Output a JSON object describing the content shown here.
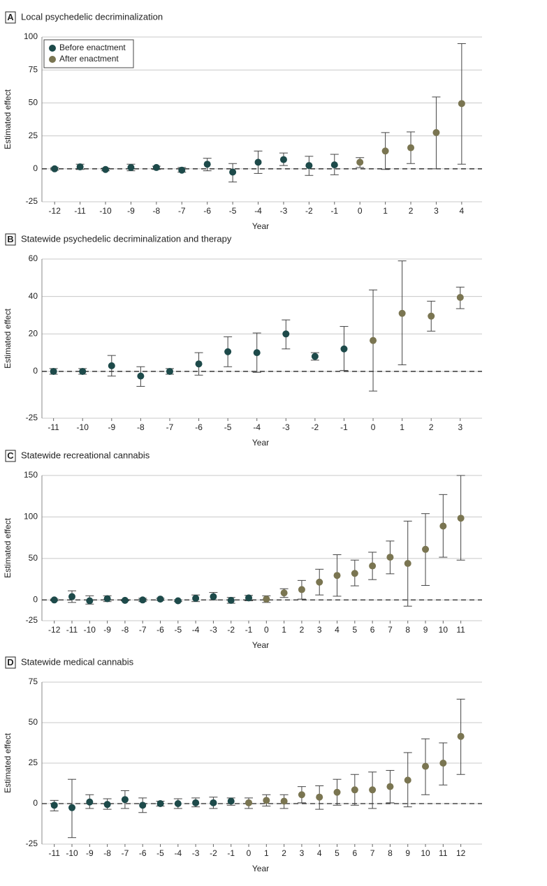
{
  "chart_data": [
    {
      "type": "errorbar",
      "panel": "A",
      "title": "Local psychedelic decriminalization",
      "xlabel": "Year",
      "ylabel": "Estimated effect",
      "xlim": [
        -12.5,
        4.8
      ],
      "xticks": [
        -12,
        -11,
        -10,
        -9,
        -8,
        -7,
        -6,
        -5,
        -4,
        -3,
        -2,
        -1,
        0,
        1,
        2,
        3,
        4
      ],
      "ylim": [
        -25,
        100
      ],
      "yticks": [
        -25,
        0,
        25,
        50,
        75,
        100
      ],
      "grid": true,
      "zero_line": true,
      "legend": "upper left",
      "series": [
        {
          "name": "Before enactment",
          "color": "#1d4a4a",
          "x": [
            -12,
            -11,
            -10,
            -9,
            -8,
            -7,
            -6,
            -5,
            -4,
            -3,
            -2,
            -1
          ],
          "values": [
            0,
            1.5,
            -0.5,
            1,
            1,
            -1,
            3.5,
            -2.5,
            5,
            7,
            2.5,
            3
          ],
          "lower": [
            -1,
            -0.5,
            -1.5,
            -1.5,
            -0.5,
            -2.5,
            -1.5,
            -10,
            -3.5,
            2.5,
            -5,
            -4.5
          ],
          "upper": [
            1,
            3.5,
            0.5,
            3.5,
            2,
            1,
            8,
            4,
            13.5,
            12,
            9.5,
            11
          ]
        },
        {
          "name": "After enactment",
          "color": "#7a7551",
          "x": [
            0,
            1,
            2,
            3,
            4
          ],
          "values": [
            5,
            13.5,
            16,
            27.5,
            49.5
          ],
          "lower": [
            1,
            -0.5,
            4,
            0,
            3.5
          ],
          "upper": [
            8.5,
            27.5,
            28,
            54.5,
            95
          ]
        }
      ]
    },
    {
      "type": "errorbar",
      "panel": "B",
      "title": "Statewide psychedelic decriminalization and therapy",
      "xlabel": "Year",
      "ylabel": "Estimated effect",
      "xlim": [
        -11.4,
        3.75
      ],
      "xticks": [
        -11,
        -10,
        -9,
        -8,
        -7,
        -6,
        -5,
        -4,
        -3,
        -2,
        -1,
        0,
        1,
        2,
        3
      ],
      "ylim": [
        -25,
        60
      ],
      "yticks": [
        -25,
        0,
        20,
        40,
        60
      ],
      "grid": true,
      "zero_line": true,
      "series": [
        {
          "color": "#1d4a4a",
          "x": [
            -11,
            -10,
            -9,
            -8,
            -7,
            -6,
            -5,
            -4,
            -3,
            -2,
            -1
          ],
          "values": [
            0,
            0,
            3,
            -2.5,
            0,
            4,
            10.5,
            10,
            20,
            8,
            12
          ],
          "lower": [
            -1.5,
            -1.5,
            -2.5,
            -8,
            -1.5,
            -2,
            2.5,
            -0.5,
            12,
            6,
            0.5
          ],
          "upper": [
            1.5,
            1.5,
            8.5,
            2.5,
            1.5,
            10,
            18.5,
            20.5,
            27.5,
            10,
            24
          ]
        },
        {
          "color": "#7a7551",
          "x": [
            0,
            1,
            2,
            3
          ],
          "values": [
            16.5,
            31,
            29.5,
            39.5
          ],
          "lower": [
            -10.5,
            3.5,
            21.5,
            33.5
          ],
          "upper": [
            43.5,
            59,
            37.5,
            45
          ]
        }
      ]
    },
    {
      "type": "errorbar",
      "panel": "C",
      "title": "Statewide recreational cannabis",
      "xlabel": "Year",
      "ylabel": "Estimated effect",
      "xlim": [
        -12.7,
        12.2
      ],
      "xticks": [
        -12,
        -11,
        -10,
        -9,
        -8,
        -7,
        -6,
        -5,
        -4,
        -3,
        -2,
        -1,
        0,
        1,
        2,
        3,
        4,
        5,
        6,
        7,
        8,
        9,
        10,
        11
      ],
      "ylim": [
        -25,
        150
      ],
      "yticks": [
        -25,
        0,
        50,
        100,
        150
      ],
      "grid": true,
      "zero_line": true,
      "series": [
        {
          "color": "#1d4a4a",
          "x": [
            -12,
            -11,
            -10,
            -9,
            -8,
            -7,
            -6,
            -5,
            -4,
            -3,
            -2,
            -1
          ],
          "values": [
            0,
            4,
            -1,
            1.5,
            -0.5,
            0,
            1,
            -1,
            2,
            4,
            -0.5,
            2.5
          ],
          "lower": [
            -1,
            -3,
            -5,
            -2,
            -1,
            -2,
            -0.5,
            -2,
            -2,
            0,
            -4,
            -1
          ],
          "upper": [
            1,
            11,
            5,
            5,
            0.5,
            2,
            2,
            0,
            6,
            9,
            3,
            5.5
          ]
        },
        {
          "color": "#7a7551",
          "x": [
            0,
            1,
            2,
            3,
            4,
            5,
            6,
            7,
            8,
            9,
            10,
            11
          ],
          "values": [
            1,
            8.5,
            12.5,
            21.5,
            29.5,
            32,
            41,
            51.5,
            44,
            61,
            89,
            98.5
          ],
          "lower": [
            -3,
            3,
            1,
            6,
            4.5,
            17,
            24.5,
            31.5,
            -7.5,
            17.5,
            51.5,
            48
          ],
          "upper": [
            5,
            13.5,
            23.5,
            37,
            54.5,
            48,
            57.5,
            71,
            95,
            104,
            127,
            150
          ]
        }
      ]
    },
    {
      "type": "errorbar",
      "panel": "D",
      "title": "Statewide medical cannabis",
      "xlabel": "Year",
      "ylabel": "Estimated effect",
      "xlim": [
        -11.7,
        13.2
      ],
      "xticks": [
        -11,
        -10,
        -9,
        -8,
        -7,
        -6,
        -5,
        -4,
        -3,
        -2,
        -1,
        0,
        1,
        2,
        3,
        4,
        5,
        6,
        7,
        8,
        9,
        10,
        11,
        12
      ],
      "ylim": [
        -25,
        75
      ],
      "yticks": [
        -25,
        0,
        25,
        50,
        75
      ],
      "grid": true,
      "zero_line": true,
      "series": [
        {
          "color": "#1d4a4a",
          "x": [
            -11,
            -10,
            -9,
            -8,
            -7,
            -6,
            -5,
            -4,
            -3,
            -2,
            -1
          ],
          "values": [
            -1,
            -2.5,
            1,
            -0.5,
            2.5,
            -1,
            0,
            0,
            0.5,
            0.5,
            1.5
          ],
          "lower": [
            -4.5,
            -21,
            -3,
            -3.5,
            -3,
            -5.5,
            -1.5,
            -3,
            -2,
            -3,
            -1
          ],
          "upper": [
            2,
            15,
            5.5,
            3,
            8,
            3.5,
            1.5,
            3,
            3.5,
            4,
            3.5
          ]
        },
        {
          "color": "#7a7551",
          "x": [
            0,
            1,
            2,
            3,
            4,
            5,
            6,
            7,
            8,
            9,
            10,
            11,
            12
          ],
          "values": [
            0.5,
            2,
            1.5,
            5.5,
            4,
            7,
            8.5,
            8.5,
            10.5,
            14.5,
            23,
            25,
            41.5
          ],
          "lower": [
            -3,
            -1.5,
            -3,
            0.5,
            -3.5,
            -1,
            -1,
            -3,
            0.5,
            -2,
            5.5,
            11.5,
            18
          ],
          "upper": [
            3.5,
            5.5,
            5.5,
            10.5,
            11,
            15,
            18,
            19.5,
            20.5,
            31.5,
            40,
            37.5,
            64.5
          ]
        }
      ]
    }
  ]
}
